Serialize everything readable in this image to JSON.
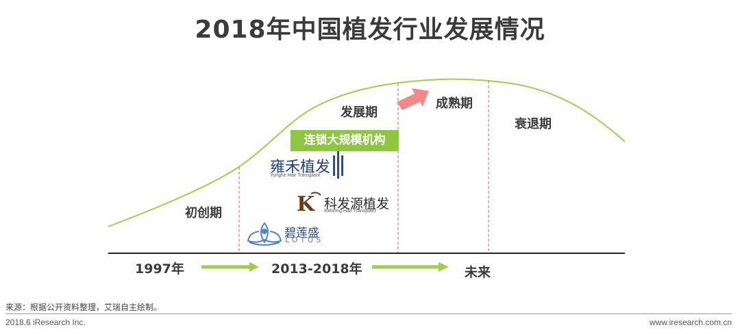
{
  "title": "2018年中国植发行业发展情况",
  "phases": {
    "startup": "初创期",
    "growth": "发展期",
    "mature": "成熟期",
    "decline": "衰退期"
  },
  "timeline": {
    "start": "1997年",
    "middle": "2013-2018年",
    "future": "未来"
  },
  "badge": "连锁大规模机构",
  "brands": {
    "yonghe": {
      "name": "雍禾植发",
      "en": "Yonghe Hair Transplant"
    },
    "kafuring": {
      "name": "科发源植发",
      "en": "Kafuring Hair Transplant"
    },
    "lotus": {
      "name": "碧莲盛",
      "en": "LOTUS"
    }
  },
  "source": "来源：根据公开资料整理，艾瑞自主绘制。",
  "footer": {
    "left": "2018.6 iResearch Inc.",
    "right": "www.iresearch.com.cn"
  },
  "colors": {
    "curve": "#9dcf4a",
    "arrow_green": "#9dcf4a",
    "arrow_pink": "#f08a8a",
    "badge": "#8dc63f",
    "divider": "#e05a5a"
  }
}
